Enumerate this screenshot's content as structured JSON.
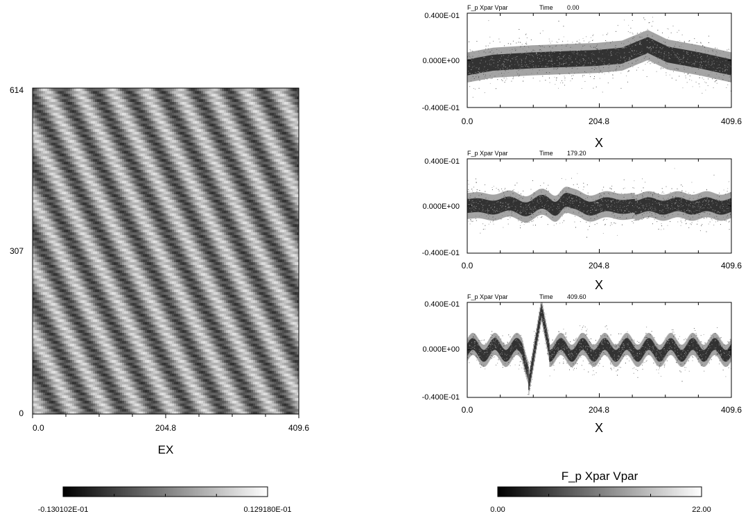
{
  "colors": {
    "background": "#ffffff",
    "foreground": "#000000",
    "cmap_low": "#000000",
    "cmap_high": "#ffffff"
  },
  "chart_data": [
    {
      "type": "heatmap",
      "variable": "EX",
      "xlabel": "EX",
      "xlim": [
        0.0,
        409.6
      ],
      "ylim": [
        0,
        614
      ],
      "x_ticks": [
        "0.0",
        "204.8",
        "409.6"
      ],
      "y_ticks": [
        "0",
        "307",
        "614"
      ],
      "pattern": {
        "periods_along_x": 8,
        "tilt_per_time_unit": 0.05,
        "fine_ripple_bands": 120
      },
      "colorbar": {
        "min_label": "-0.130102E-01",
        "max_label": "0.129180E-01",
        "min": -0.0130102,
        "max": 0.012918,
        "colormap": "gray"
      }
    },
    {
      "type": "scatter",
      "header_label": "F_p Xpar Vpar",
      "time_label": "Time",
      "time_value": "0.00",
      "xlabel": "X",
      "xlim": [
        0.0,
        409.6
      ],
      "ylim": [
        -0.04,
        0.04
      ],
      "x_ticks": [
        "0.0",
        "204.8",
        "409.6"
      ],
      "y_ticks": [
        "0.400E-01",
        "0.000E+00",
        "-0.400E-01"
      ],
      "profile": {
        "centers_x": [
          0,
          40,
          100,
          200,
          240,
          280,
          310,
          360,
          409.6
        ],
        "centers_y": [
          -0.006,
          -0.002,
          0.0,
          0.002,
          0.004,
          0.013,
          0.005,
          0.0,
          -0.006
        ],
        "thermal_spread": 0.0075
      }
    },
    {
      "type": "scatter",
      "header_label": "F_p Xpar Vpar",
      "time_label": "Time",
      "time_value": "179.20",
      "xlabel": "X",
      "xlim": [
        0.0,
        409.6
      ],
      "ylim": [
        -0.04,
        0.04
      ],
      "x_ticks": [
        "0.0",
        "204.8",
        "409.6"
      ],
      "y_ticks": [
        "0.400E-01",
        "0.000E+00",
        "-0.400E-01"
      ],
      "profile": {
        "wave_amplitude": 0.004,
        "wave_wavelength": 51.2,
        "bump_x": 150,
        "bump_amplitude": 0.006,
        "thermal_spread": 0.0065
      }
    },
    {
      "type": "scatter",
      "header_label": "F_p Xpar Vpar",
      "time_label": "Time",
      "time_value": "409.60",
      "xlabel": "X",
      "xlim": [
        0.0,
        409.6
      ],
      "ylim": [
        -0.04,
        0.04
      ],
      "x_ticks": [
        "0.0",
        "204.8",
        "409.6"
      ],
      "y_ticks": [
        "0.400E-01",
        "0.000E+00",
        "-0.400E-01"
      ],
      "profile": {
        "wave_amplitude": 0.005,
        "wave_wavelength": 34.1,
        "hole_x": [
          95,
          115
        ],
        "hole_y": [
          -0.03,
          0.034
        ],
        "thermal_spread": 0.0055
      }
    }
  ],
  "colorbar_right": {
    "title": "F_p Xpar Vpar",
    "min_label": "0.00",
    "max_label": "22.00",
    "min": 0.0,
    "max": 22.0,
    "colormap": "gray"
  }
}
